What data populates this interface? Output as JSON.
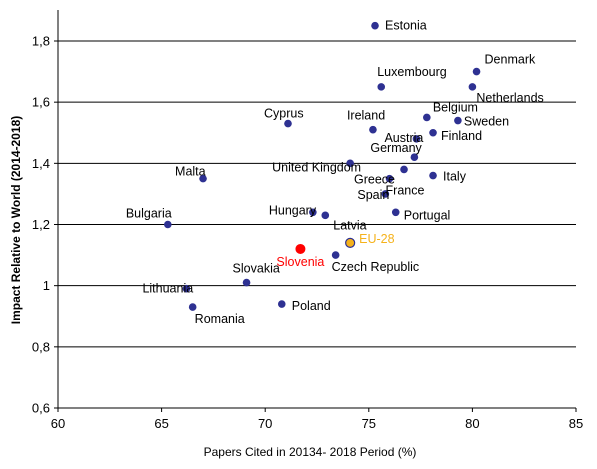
{
  "chart_data": {
    "type": "scatter",
    "xlabel": "Papers Cited in 20134- 2018 Period  (%)",
    "ylabel": "Impact Relative to World (2014-2018)",
    "xlim": [
      60,
      85
    ],
    "ylim": [
      0.6,
      1.9
    ],
    "x_ticks": [
      "60",
      "65",
      "70",
      "75",
      "80",
      "85"
    ],
    "y_ticks": [
      "0,6",
      "0,8",
      "1",
      "1,2",
      "1,4",
      "1,6",
      "1,8"
    ],
    "grid": "horizontal",
    "colors": {
      "default": "#2e3192",
      "highlight": "#ff0000",
      "eu": "#f5b21b",
      "eu_stroke": "#2e3192",
      "grid": "#000000"
    },
    "points": [
      {
        "label": "Estonia",
        "x": 75.3,
        "y": 1.85,
        "style": "default"
      },
      {
        "label": "Denmark",
        "x": 80.2,
        "y": 1.7,
        "style": "default"
      },
      {
        "label": "Netherlands",
        "x": 80.0,
        "y": 1.65,
        "style": "default"
      },
      {
        "label": "Luxembourg",
        "x": 75.6,
        "y": 1.65,
        "style": "default"
      },
      {
        "label": "Belgium",
        "x": 77.8,
        "y": 1.55,
        "style": "default"
      },
      {
        "label": "Sweden",
        "x": 79.3,
        "y": 1.54,
        "style": "default"
      },
      {
        "label": "Cyprus",
        "x": 71.1,
        "y": 1.53,
        "style": "default"
      },
      {
        "label": "Ireland",
        "x": 75.2,
        "y": 1.51,
        "style": "default"
      },
      {
        "label": "Austria",
        "x": 77.3,
        "y": 1.48,
        "style": "default"
      },
      {
        "label": "Finland",
        "x": 78.1,
        "y": 1.5,
        "style": "default"
      },
      {
        "label": "Germany",
        "x": 77.2,
        "y": 1.42,
        "style": "default"
      },
      {
        "label": "United Kingdom",
        "x": 74.1,
        "y": 1.4,
        "style": "default"
      },
      {
        "label": "Greece",
        "x": 76.7,
        "y": 1.38,
        "style": "default"
      },
      {
        "label": "France",
        "x": 76.0,
        "y": 1.35,
        "style": "default"
      },
      {
        "label": "Italy",
        "x": 78.1,
        "y": 1.36,
        "style": "default"
      },
      {
        "label": "Malta",
        "x": 67.0,
        "y": 1.35,
        "style": "default"
      },
      {
        "label": "Spain",
        "x": 75.8,
        "y": 1.3,
        "style": "default"
      },
      {
        "label": "Hungary",
        "x": 72.3,
        "y": 1.24,
        "style": "default"
      },
      {
        "label": "Portugal",
        "x": 76.3,
        "y": 1.24,
        "style": "default"
      },
      {
        "label": "Latvia",
        "x": 72.9,
        "y": 1.23,
        "style": "default"
      },
      {
        "label": "Bulgaria",
        "x": 65.3,
        "y": 1.2,
        "style": "default"
      },
      {
        "label": "EU-28",
        "x": 74.1,
        "y": 1.14,
        "style": "eu"
      },
      {
        "label": "Slovenia",
        "x": 71.7,
        "y": 1.12,
        "style": "highlight"
      },
      {
        "label": "Czech Republic",
        "x": 73.4,
        "y": 1.1,
        "style": "default"
      },
      {
        "label": "Slovakia",
        "x": 69.1,
        "y": 1.01,
        "style": "default"
      },
      {
        "label": "Lithuania",
        "x": 66.2,
        "y": 0.99,
        "style": "default"
      },
      {
        "label": "Poland",
        "x": 70.8,
        "y": 0.94,
        "style": "default"
      },
      {
        "label": "Romania",
        "x": 66.5,
        "y": 0.93,
        "style": "default"
      }
    ]
  }
}
